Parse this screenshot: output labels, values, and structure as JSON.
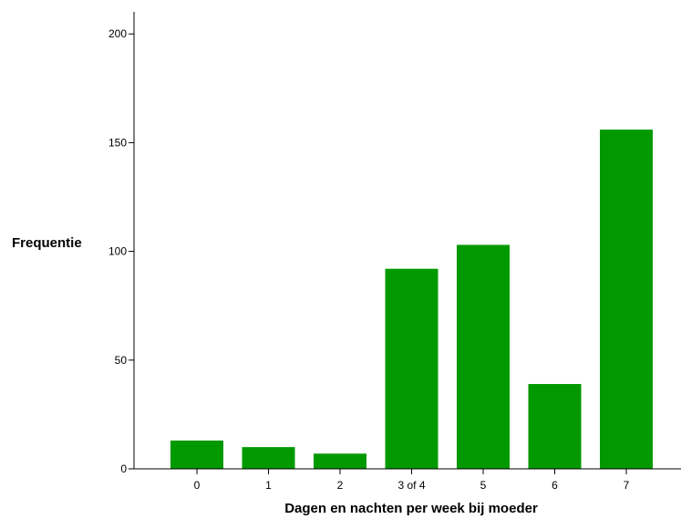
{
  "chart_data": {
    "type": "bar",
    "title": "",
    "xlabel": "Dagen en nachten per week bij moeder",
    "ylabel": "Frequentie",
    "categories": [
      "0",
      "1",
      "2",
      "3 of 4",
      "5",
      "6",
      "7"
    ],
    "values": [
      13,
      10,
      7,
      92,
      103,
      39,
      156
    ],
    "ylim": [
      0,
      210
    ],
    "yticks": [
      0,
      50,
      100,
      150,
      200
    ],
    "grid": false,
    "legend": "none",
    "bar_color": "#009900"
  }
}
